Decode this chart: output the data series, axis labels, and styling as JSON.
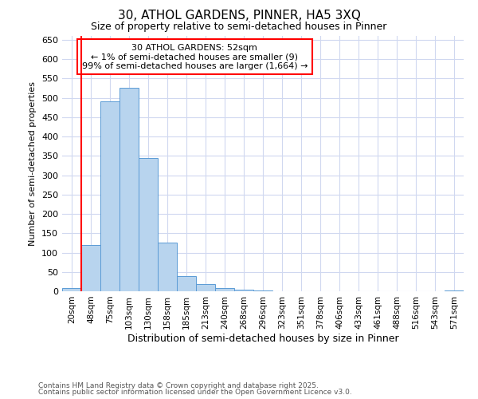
{
  "title1": "30, ATHOL GARDENS, PINNER, HA5 3XQ",
  "title2": "Size of property relative to semi-detached houses in Pinner",
  "xlabel": "Distribution of semi-detached houses by size in Pinner",
  "ylabel": "Number of semi-detached properties",
  "categories": [
    "20sqm",
    "48sqm",
    "75sqm",
    "103sqm",
    "130sqm",
    "158sqm",
    "185sqm",
    "213sqm",
    "240sqm",
    "268sqm",
    "296sqm",
    "323sqm",
    "351sqm",
    "378sqm",
    "406sqm",
    "433sqm",
    "461sqm",
    "488sqm",
    "516sqm",
    "543sqm",
    "571sqm"
  ],
  "values": [
    9,
    120,
    490,
    525,
    345,
    125,
    40,
    18,
    8,
    5,
    3,
    0,
    0,
    0,
    0,
    0,
    0,
    0,
    0,
    0,
    3
  ],
  "bar_color": "#b8d4ee",
  "bar_edgecolor": "#5b9bd5",
  "vline_color": "red",
  "vline_x_idx": 1,
  "ylim": [
    0,
    660
  ],
  "yticks": [
    0,
    50,
    100,
    150,
    200,
    250,
    300,
    350,
    400,
    450,
    500,
    550,
    600,
    650
  ],
  "annotation_title": "30 ATHOL GARDENS: 52sqm",
  "annotation_line1": "← 1% of semi-detached houses are smaller (9)",
  "annotation_line2": "99% of semi-detached houses are larger (1,664) →",
  "annotation_box_color": "red",
  "background_color": "#ffffff",
  "grid_color": "#d0d8f0",
  "footer1": "Contains HM Land Registry data © Crown copyright and database right 2025.",
  "footer2": "Contains public sector information licensed under the Open Government Licence v3.0."
}
